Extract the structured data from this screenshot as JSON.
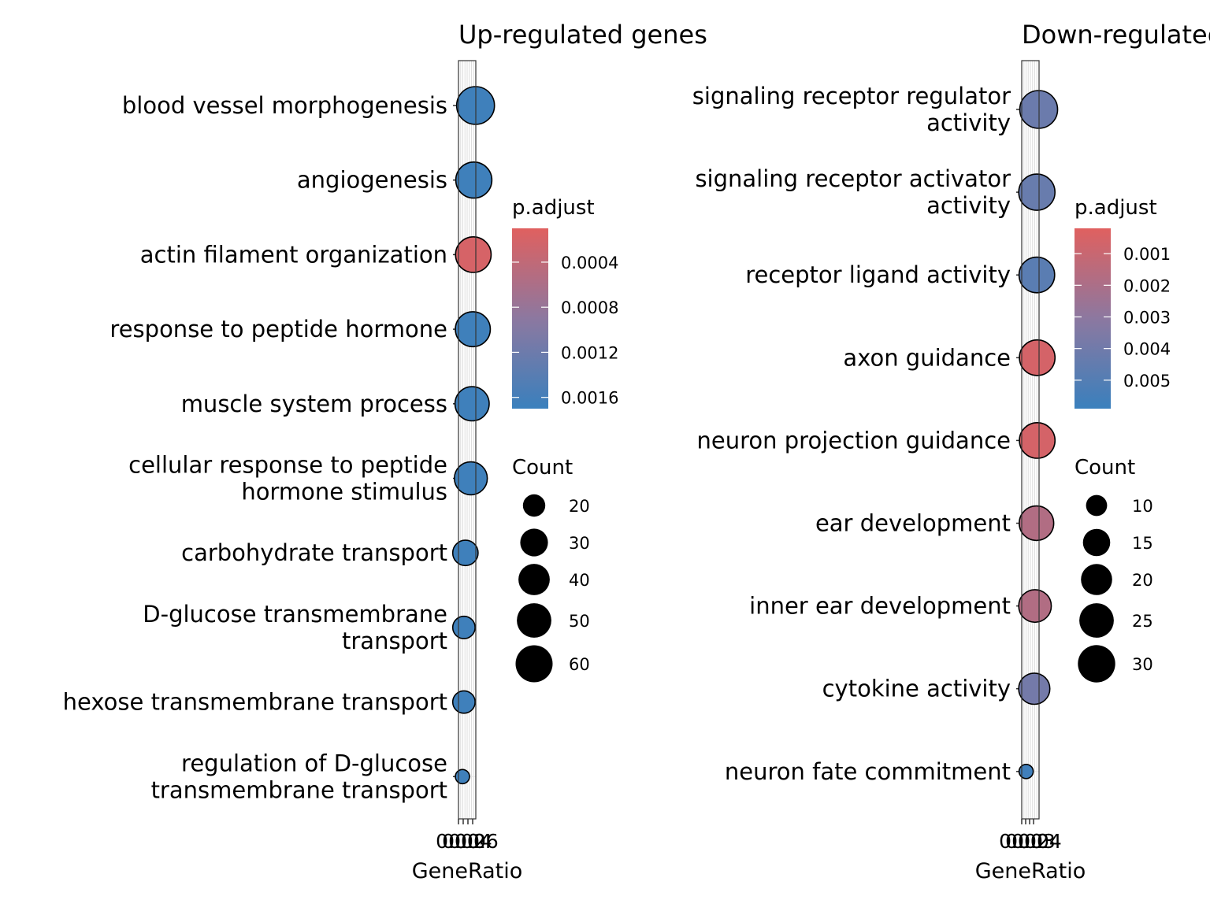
{
  "chart_data": [
    {
      "type": "scatter",
      "title": "Up-regulated genes",
      "xlabel": "GeneRatio",
      "ylabel": "",
      "x_tick_labels": [
        "0.00",
        "0.02",
        "0.04",
        "0.06"
      ],
      "categories": [
        "blood vessel morphogenesis",
        "angiogenesis",
        "actin filament organization",
        "response to peptide hormone",
        "muscle system process",
        "cellular response to peptide\nhormone stimulus",
        "carbohydrate transport",
        "D-glucose transmembrane\ntransport",
        "hexose transmembrane transport",
        "regulation of D-glucose\ntransmembrane transport"
      ],
      "gene_ratio": [
        0.069,
        0.062,
        0.06,
        0.058,
        0.055,
        0.05,
        0.028,
        0.022,
        0.022,
        0.016
      ],
      "count": [
        63,
        56,
        54,
        52,
        49,
        45,
        25,
        20,
        20,
        14
      ],
      "p_adjust": [
        0.00165,
        0.00165,
        0.0002,
        0.00165,
        0.00165,
        0.00165,
        0.00165,
        0.00165,
        0.00165,
        0.00165
      ],
      "color_legend": {
        "title": "p.adjust",
        "ticks": [
          "0.0004",
          "0.0008",
          "0.0012",
          "0.0016"
        ],
        "high_color": "#e0605f",
        "low_color": "#3a80bd"
      },
      "size_legend": {
        "title": "Count",
        "labels": [
          "20",
          "30",
          "40",
          "50",
          "60"
        ]
      }
    },
    {
      "type": "scatter",
      "title": "Down-regulated genes",
      "xlabel": "GeneRatio",
      "ylabel": "",
      "x_tick_labels": [
        "0.00",
        "0.02",
        "0.03",
        "0.04"
      ],
      "categories": [
        "signaling receptor regulator\nactivity",
        "signaling receptor activator\nactivity",
        "receptor ligand activity",
        "axon guidance",
        "neuron projection guidance",
        "ear development",
        "inner ear development",
        "cytokine activity",
        "neuron fate commitment"
      ],
      "gene_ratio": [
        0.046,
        0.041,
        0.041,
        0.042,
        0.042,
        0.04,
        0.036,
        0.034,
        0.012
      ],
      "count": [
        31,
        28,
        27,
        27,
        27,
        25,
        22,
        20,
        8
      ],
      "p_adjust": [
        0.0042,
        0.0043,
        0.0048,
        0.0006,
        0.0006,
        0.0018,
        0.0018,
        0.0039,
        0.0057
      ],
      "color_legend": {
        "title": "p.adjust",
        "ticks": [
          "0.001",
          "0.002",
          "0.003",
          "0.004",
          "0.005"
        ],
        "high_color": "#e0605f",
        "low_color": "#3a80bd"
      },
      "size_legend": {
        "title": "Count",
        "labels": [
          "10",
          "15",
          "20",
          "25",
          "30"
        ]
      }
    }
  ]
}
